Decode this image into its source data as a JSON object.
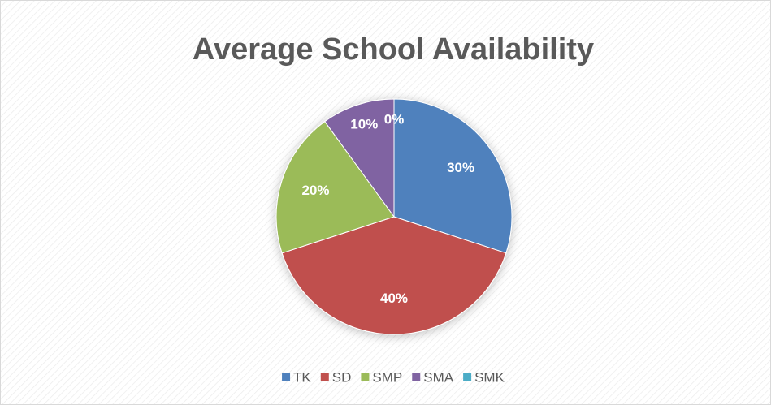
{
  "chart_data": {
    "type": "pie",
    "title": "Average School Availability",
    "categories": [
      "TK",
      "SD",
      "SMP",
      "SMA",
      "SMK"
    ],
    "values": [
      30,
      40,
      20,
      10,
      0
    ],
    "value_labels": [
      "30%",
      "40%",
      "20%",
      "10%",
      "0%"
    ],
    "colors": [
      "#4f81bd",
      "#c0504d",
      "#9bbb59",
      "#8064a2",
      "#4bacc6"
    ],
    "legend": "bottom"
  }
}
